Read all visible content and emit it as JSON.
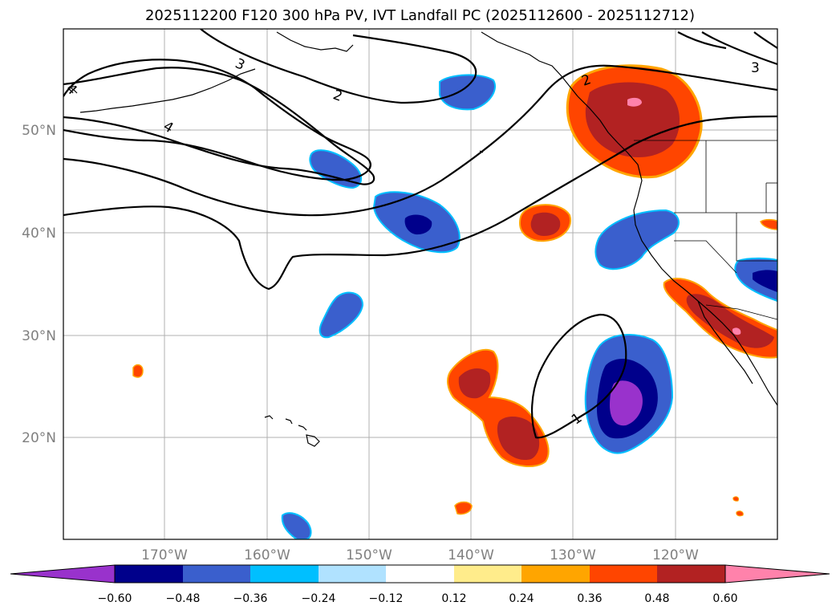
{
  "title": "2025112200 F120 300 hPa PV, IVT Landfall PC (2025112600 - 2025112712)",
  "map": {
    "lon_labels": [
      "170°W",
      "160°W",
      "150°W",
      "140°W",
      "130°W",
      "120°W"
    ],
    "lat_labels": [
      "50°N",
      "40°N",
      "30°N",
      "20°N"
    ],
    "pv_contour_labels": [
      "1",
      "2",
      "3",
      "4"
    ]
  },
  "colorbar": {
    "ticks": [
      "−0.60",
      "−0.48",
      "−0.36",
      "−0.24",
      "−0.12",
      "0.12",
      "0.24",
      "0.36",
      "0.48",
      "0.60"
    ],
    "colors": [
      "#9932cc",
      "#00008b",
      "#3a5fcd",
      "#00bfff",
      "#b0e2ff",
      "#ffffff",
      "#ffec8b",
      "#ffa500",
      "#ff4500",
      "#b22222",
      "#ff82ab"
    ]
  },
  "legend_colors": {
    "neg_strong": "#00008b",
    "neg_mid": "#3a5fcd",
    "pos_mid": "#ff4500",
    "pos_strong": "#b22222"
  }
}
